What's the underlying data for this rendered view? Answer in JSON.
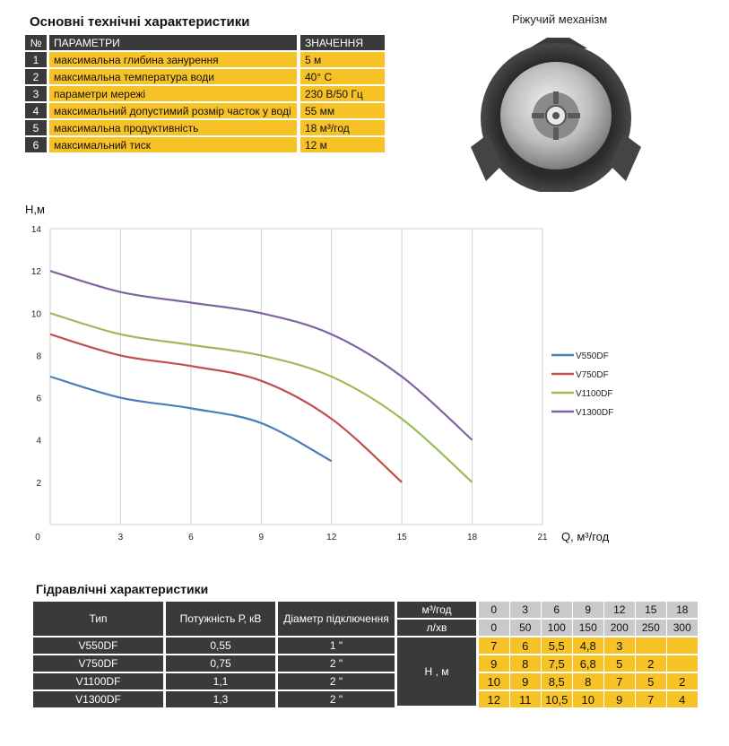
{
  "spec": {
    "title": "Основні технічні характеристики",
    "headers": {
      "num": "№",
      "param": "ПАРАМЕТРИ",
      "value": "ЗНАЧЕННЯ"
    },
    "rows": [
      {
        "num": "1",
        "param": "максимальна глибина занурення",
        "value": "5 м"
      },
      {
        "num": "2",
        "param": "максимальна температура води",
        "value": "40° С"
      },
      {
        "num": "3",
        "param": "параметри мережі",
        "value": "230 В/50 Гц"
      },
      {
        "num": "4",
        "param": "максимальний допустимий розмір часток у воді",
        "value": "55 мм"
      },
      {
        "num": "5",
        "param": "максимальна продуктивність",
        "value": "18 м³/год"
      },
      {
        "num": "6",
        "param": "максимальний тиск",
        "value": "12 м"
      }
    ]
  },
  "photo": {
    "caption": "Ріжучий механізм"
  },
  "chart_data": {
    "type": "line",
    "ylabel": "H,м",
    "xlabel": "Q, м³/год",
    "xlim": [
      0,
      21
    ],
    "ylim": [
      0,
      14
    ],
    "x_ticks": [
      0,
      3,
      6,
      9,
      12,
      15,
      18,
      21
    ],
    "y_ticks": [
      2,
      4,
      6,
      8,
      10,
      12,
      14
    ],
    "grid": "vertical",
    "legend": "right",
    "series": [
      {
        "name": "V550DF",
        "color": "#4a7ebb",
        "x": [
          0,
          3,
          6,
          9,
          12
        ],
        "y": [
          7,
          6,
          5.5,
          4.8,
          3
        ]
      },
      {
        "name": "V750DF",
        "color": "#c0504d",
        "x": [
          0,
          3,
          6,
          9,
          12,
          15
        ],
        "y": [
          9,
          8,
          7.5,
          6.8,
          5,
          2
        ]
      },
      {
        "name": "V1100DF",
        "color": "#9bbb59",
        "x": [
          0,
          3,
          6,
          9,
          12,
          15,
          18
        ],
        "y": [
          10,
          9,
          8.5,
          8,
          7,
          5,
          2
        ]
      },
      {
        "name": "V1300DF",
        "color": "#8064a2",
        "x": [
          0,
          3,
          6,
          9,
          12,
          15,
          18
        ],
        "y": [
          12,
          11,
          10.5,
          10,
          9,
          7,
          4
        ]
      }
    ]
  },
  "hydraulic": {
    "title": "Гідравлічні характеристики",
    "headers": {
      "type": "Тип",
      "power": "Потужність Р, кВ",
      "diameter": "Діаметр підключення",
      "q_m3": "м³/год",
      "q_lmin": "л/хв",
      "h": "Н , м"
    },
    "q_m3": [
      "0",
      "3",
      "6",
      "9",
      "12",
      "15",
      "18"
    ],
    "q_lmin": [
      "0",
      "50",
      "100",
      "150",
      "200",
      "250",
      "300"
    ],
    "rows": [
      {
        "type": "V550DF",
        "power": "0,55",
        "diameter": "1 \"",
        "h": [
          "7",
          "6",
          "5,5",
          "4,8",
          "3",
          "",
          ""
        ]
      },
      {
        "type": "V750DF",
        "power": "0,75",
        "diameter": "2 \"",
        "h": [
          "9",
          "8",
          "7,5",
          "6,8",
          "5",
          "2",
          ""
        ]
      },
      {
        "type": "V1100DF",
        "power": "1,1",
        "diameter": "2 \"",
        "h": [
          "10",
          "9",
          "8,5",
          "8",
          "7",
          "5",
          "2"
        ]
      },
      {
        "type": "V1300DF",
        "power": "1,3",
        "diameter": "2 \"",
        "h": [
          "12",
          "11",
          "10,5",
          "10",
          "9",
          "7",
          "4"
        ]
      }
    ]
  }
}
